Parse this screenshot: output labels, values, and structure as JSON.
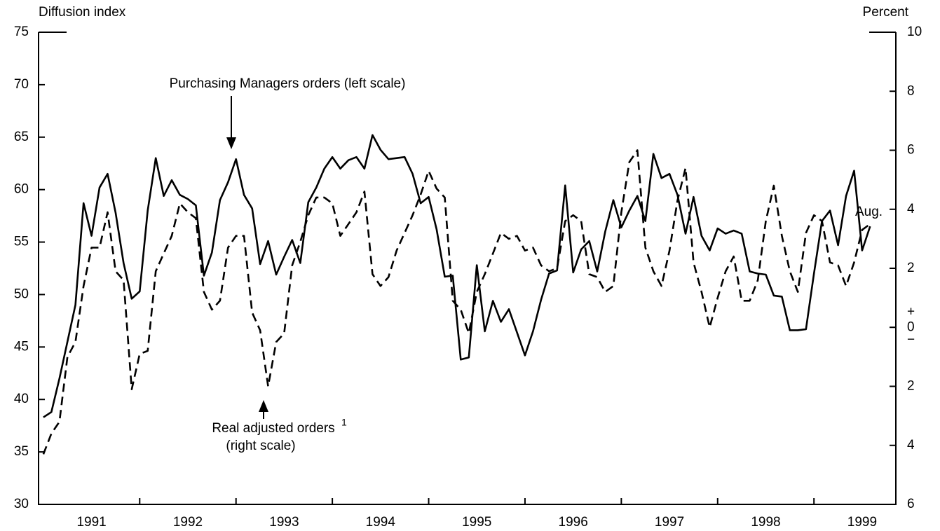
{
  "chart_data": {
    "type": "line",
    "y_axis_label": "Diffusion index",
    "y2_axis_label": "Percent",
    "x": [
      1991,
      1991.083,
      1991.167,
      1991.25,
      1991.333,
      1991.417,
      1991.5,
      1991.583,
      1991.667,
      1991.75,
      1991.833,
      1991.917,
      1992,
      1992.083,
      1992.167,
      1992.25,
      1992.333,
      1992.417,
      1992.5,
      1992.583,
      1992.667,
      1992.75,
      1992.833,
      1992.917,
      1993,
      1993.083,
      1993.167,
      1993.25,
      1993.333,
      1993.417,
      1993.5,
      1993.583,
      1993.667,
      1993.75,
      1993.833,
      1993.917,
      1994,
      1994.083,
      1994.167,
      1994.25,
      1994.333,
      1994.417,
      1994.5,
      1994.583,
      1994.667,
      1994.75,
      1994.833,
      1994.917,
      1995,
      1995.083,
      1995.167,
      1995.25,
      1995.333,
      1995.417,
      1995.5,
      1995.583,
      1995.667,
      1995.75,
      1995.833,
      1995.917,
      1996,
      1996.083,
      1996.167,
      1996.25,
      1996.333,
      1996.417,
      1996.5,
      1996.583,
      1996.667,
      1996.75,
      1996.833,
      1996.917,
      1997,
      1997.083,
      1997.167,
      1997.25,
      1997.333,
      1997.417,
      1997.5,
      1997.583,
      1997.667,
      1997.75,
      1997.833,
      1997.917,
      1998,
      1998.083,
      1998.167,
      1998.25,
      1998.333,
      1998.417,
      1998.5,
      1998.583,
      1998.667,
      1998.75,
      1998.833,
      1998.917,
      1999,
      1999.083,
      1999.167,
      1999.25,
      1999.333,
      1999.417,
      1999.5,
      1999.583
    ],
    "series": [
      {
        "color": "#000000",
        "dash": false,
        "values": [
          38.3,
          38.8,
          42,
          45.5,
          49,
          58.7,
          55.6,
          60.2,
          61.5,
          57.8,
          53,
          49.6,
          50.3,
          58,
          63,
          59.4,
          60.9,
          59.5,
          59.1,
          58.5,
          51.8,
          54,
          59,
          60.7,
          62.9,
          59.5,
          58.2,
          52.9,
          55.1,
          51.9,
          53.6,
          55.2,
          53,
          58.8,
          60.2,
          62,
          63.1,
          62,
          62.8,
          63.1,
          62,
          65.2,
          63.8,
          62.9,
          63,
          63.1,
          61.5,
          58.7,
          59.3,
          56.2,
          51.7,
          51.8,
          43.8,
          44,
          52.8,
          46.5,
          49.4,
          47.4,
          48.6,
          46.4,
          44.2,
          46.5,
          49.5,
          52,
          52.3,
          60.4,
          52.1,
          54.3,
          55.1,
          52.2,
          56,
          59,
          56.4,
          58,
          59.4,
          57,
          63.4,
          61.1,
          61.5,
          59.5,
          55.8,
          59.3,
          55.6,
          54.2,
          56.3,
          55.8,
          56.1,
          55.8,
          52.2,
          52,
          51.9,
          49.9,
          49.8,
          46.6,
          46.6,
          46.7,
          52,
          57,
          58,
          54.7,
          59.4,
          61.8,
          54.2,
          56.5
        ]
      },
      {
        "color": "#000000",
        "dash": true,
        "axis": "y2",
        "values": [
          -4.3,
          -3.6,
          -3.2,
          -1.0,
          -0.5,
          1.4,
          2.7,
          2.7,
          3.9,
          1.9,
          1.6,
          -2.1,
          -0.9,
          -0.8,
          1.9,
          2.5,
          3.1,
          4.2,
          3.9,
          3.7,
          1.2,
          0.6,
          0.9,
          2.7,
          3.1,
          3.1,
          0.5,
          -0.1,
          -2.0,
          -0.5,
          -0.2,
          2.1,
          2.9,
          3.8,
          4.4,
          4.4,
          4.2,
          3.1,
          3.5,
          3.9,
          4.6,
          1.8,
          1.4,
          1.7,
          2.6,
          3.2,
          3.8,
          4.5,
          5.3,
          4.7,
          4.4,
          0.9,
          0.6,
          -0.2,
          1.2,
          1.8,
          2.5,
          3.2,
          3.0,
          3.1,
          2.6,
          2.7,
          2.1,
          1.9,
          2.0,
          3.6,
          3.8,
          3.6,
          1.8,
          1.7,
          1.2,
          1.4,
          3.9,
          5.6,
          6.0,
          2.7,
          1.9,
          1.4,
          2.6,
          4.3,
          5.4,
          2.2,
          1.2,
          0.0,
          1.0,
          1.9,
          2.4,
          0.9,
          0.9,
          1.6,
          3.6,
          4.8,
          3.1,
          1.9,
          1.2,
          3.2,
          3.8,
          3.6,
          2.2,
          2.1,
          1.4,
          2.2,
          3.3,
          3.5
        ]
      }
    ],
    "xlim": [
      1990.95,
      1999.85
    ],
    "xticks": [
      {
        "value": 1991.5,
        "label": "1991"
      },
      {
        "value": 1992.5,
        "label": "1992"
      },
      {
        "value": 1993.5,
        "label": "1993"
      },
      {
        "value": 1994.5,
        "label": "1994"
      },
      {
        "value": 1995.5,
        "label": "1995"
      },
      {
        "value": 1996.5,
        "label": "1996"
      },
      {
        "value": 1997.5,
        "label": "1997"
      },
      {
        "value": 1998.5,
        "label": "1998"
      },
      {
        "value": 1999.5,
        "label": "1999"
      }
    ],
    "x_boundaries": [
      1992,
      1993,
      1994,
      1995,
      1996,
      1997,
      1998,
      1999
    ],
    "ylim": [
      30,
      75
    ],
    "yticks": [
      30,
      35,
      40,
      45,
      50,
      55,
      60,
      65,
      70,
      75
    ],
    "y2lim": [
      -6,
      10
    ],
    "y2ticks": [
      {
        "value": -6,
        "label": "6"
      },
      {
        "value": -4,
        "label": "4"
      },
      {
        "value": -2,
        "label": "2"
      },
      0,
      2,
      4,
      6,
      8,
      10
    ],
    "y2_signs": [
      "+",
      "−"
    ],
    "annotations": [
      {
        "text": "Purchasing Managers orders (left scale)"
      },
      {
        "text": "Real adjusted orders",
        "sup": "1",
        "line2": "(right scale)"
      },
      {
        "text": "Aug."
      }
    ]
  }
}
